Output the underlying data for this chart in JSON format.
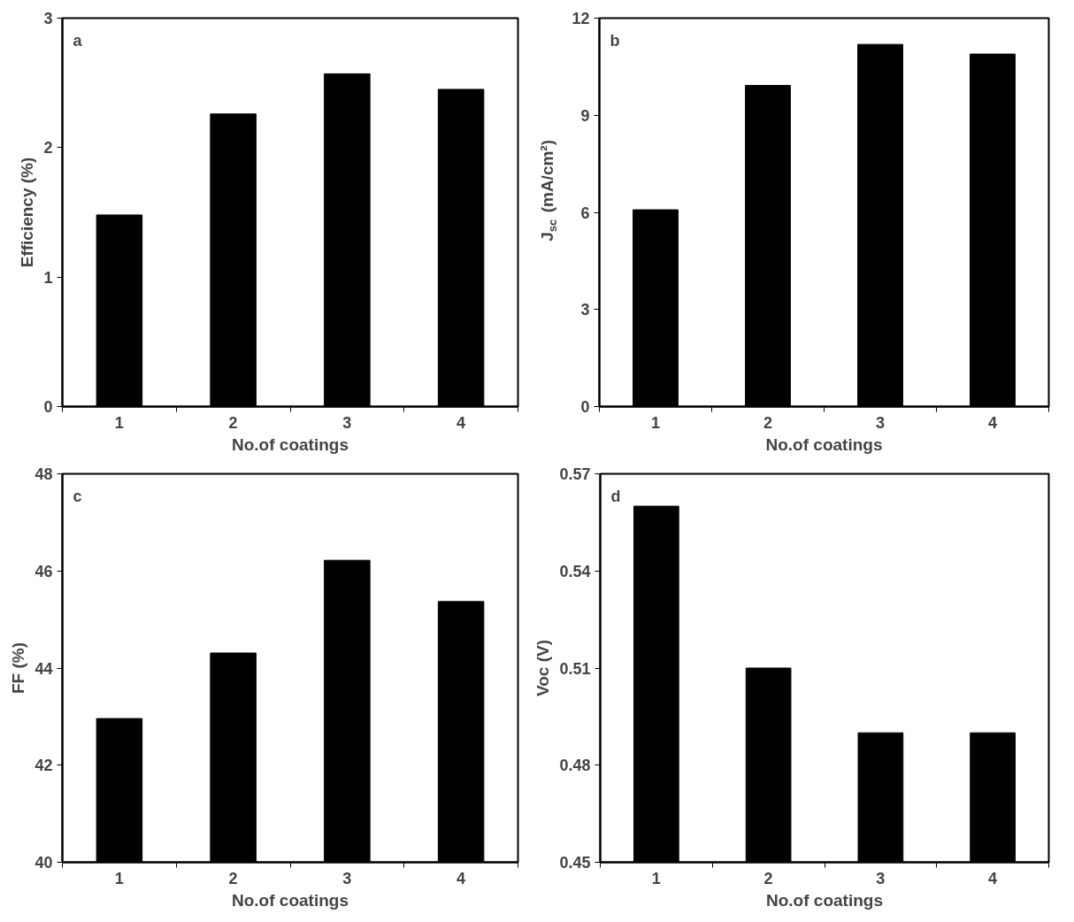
{
  "chart_data": [
    {
      "type": "bar",
      "annotations": [
        "a"
      ],
      "xlabel": "No.of coatings",
      "ylabel": "Efficiency (%)",
      "categories": [
        "1",
        "2",
        "3",
        "4"
      ],
      "values": [
        1.48,
        2.26,
        2.57,
        2.45
      ],
      "color": "#000000",
      "ylim": [
        0,
        3
      ],
      "yticks": [
        0,
        1,
        2,
        3
      ],
      "grid": false
    },
    {
      "type": "bar",
      "annotations": [
        "b"
      ],
      "xlabel": "No.of coatings",
      "ylabel": "J$_{sc}$ (mA/cm²)",
      "categories": [
        "1",
        "2",
        "3",
        "4"
      ],
      "values": [
        6.08,
        9.92,
        11.19,
        10.89
      ],
      "color": "#000000",
      "ylim": [
        0,
        12
      ],
      "yticks": [
        0,
        3,
        6,
        9,
        12
      ],
      "grid": false
    },
    {
      "type": "bar",
      "annotations": [
        "c"
      ],
      "xlabel": "No.of coatings",
      "ylabel": "FF (%)",
      "categories": [
        "1",
        "2",
        "3",
        "4"
      ],
      "values": [
        42.96,
        44.31,
        46.22,
        45.37
      ],
      "color": "#000000",
      "ylim": [
        40,
        48
      ],
      "yticks": [
        40,
        42,
        44,
        46,
        48
      ],
      "grid": false
    },
    {
      "type": "bar",
      "annotations": [
        "d"
      ],
      "xlabel": "No.of coatings",
      "ylabel": "Voc (V)",
      "categories": [
        "1",
        "2",
        "3",
        "4"
      ],
      "values": [
        0.56,
        0.51,
        0.49,
        0.49
      ],
      "color": "#000000",
      "ylim": [
        0.45,
        0.57
      ],
      "yticks": [
        {
          "value": 0.45,
          "label": "0.45"
        },
        {
          "value": 0.48,
          "label": "0.48"
        },
        {
          "value": 0.51,
          "label": "0.51"
        },
        {
          "value": 0.54,
          "label": "0.54"
        },
        {
          "value": 0.57,
          "label": "0.57"
        }
      ],
      "grid": false
    }
  ]
}
